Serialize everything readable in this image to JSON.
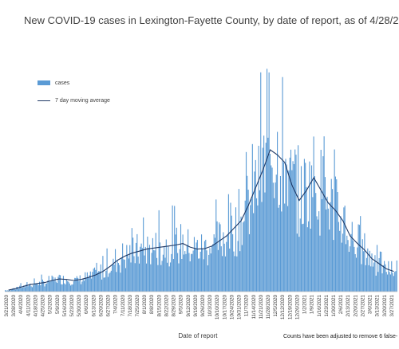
{
  "chart_data": {
    "type": "bar",
    "title": "New COVID-19 cases in Lexington-Fayette County, by date of report, as of 4/28/2021",
    "xlabel": "Date of report",
    "ylabel": "",
    "note": "Counts have been adjusted to remove 6 false-",
    "legend_placement": "top-left",
    "grid": false,
    "x_tick_labels": [
      "3/21/2020",
      "3/28/2020",
      "4/4/2020",
      "4/11/2020",
      "4/18/2020",
      "4/25/2020",
      "5/2/2020",
      "5/9/2020",
      "5/16/2020",
      "5/23/2020",
      "5/30/2020",
      "6/6/2020",
      "6/13/2020",
      "6/20/2020",
      "6/27/2020",
      "7/4/2020",
      "7/11/2020",
      "7/18/2020",
      "7/25/2020",
      "8/1/2020",
      "8/8/2020",
      "8/15/2020",
      "8/22/2020",
      "8/29/2020",
      "9/5/2020",
      "9/12/2020",
      "9/19/2020",
      "9/26/2020",
      "10/3/2020",
      "10/10/2020",
      "10/17/2020",
      "10/24/2020",
      "10/31/2020",
      "11/7/2020",
      "11/14/2020",
      "11/21/2020",
      "11/28/2020",
      "12/5/2020",
      "12/12/2020",
      "12/19/2020",
      "12/26/2020",
      "1/2/2021",
      "1/9/2021",
      "1/16/2021",
      "1/23/2021",
      "1/30/2021",
      "2/6/2021",
      "2/13/2021",
      "2/20/2021",
      "2/27/2021",
      "3/6/2021",
      "3/13/2021",
      "3/20/2021",
      "3/27/2021"
    ],
    "series": [
      {
        "name": "cases",
        "kind": "bar",
        "color": "#5b9bd5",
        "values_weekly_avg": [
          3,
          6,
          10,
          14,
          16,
          18,
          22,
          25,
          24,
          22,
          24,
          28,
          33,
          40,
          50,
          62,
          70,
          76,
          80,
          84,
          86,
          88,
          90,
          92,
          95,
          88,
          84,
          85,
          90,
          100,
          110,
          125,
          140,
          170,
          205,
          240,
          280,
          270,
          255,
          210,
          180,
          200,
          225,
          200,
          175,
          160,
          140,
          110,
          95,
          82,
          65,
          55,
          45,
          40
        ]
      },
      {
        "name": "7 day moving average",
        "kind": "line",
        "color": "#1f3864",
        "values": [
          3,
          6,
          10,
          14,
          16,
          18,
          22,
          25,
          24,
          22,
          24,
          28,
          33,
          40,
          50,
          62,
          70,
          76,
          80,
          84,
          86,
          88,
          90,
          92,
          95,
          88,
          84,
          85,
          90,
          100,
          110,
          125,
          140,
          170,
          205,
          240,
          280,
          270,
          255,
          210,
          180,
          200,
          225,
          200,
          175,
          160,
          140,
          110,
          95,
          82,
          65,
          55,
          45,
          40
        ]
      }
    ],
    "peak_value": 440,
    "ylim": [
      0,
      450
    ]
  }
}
